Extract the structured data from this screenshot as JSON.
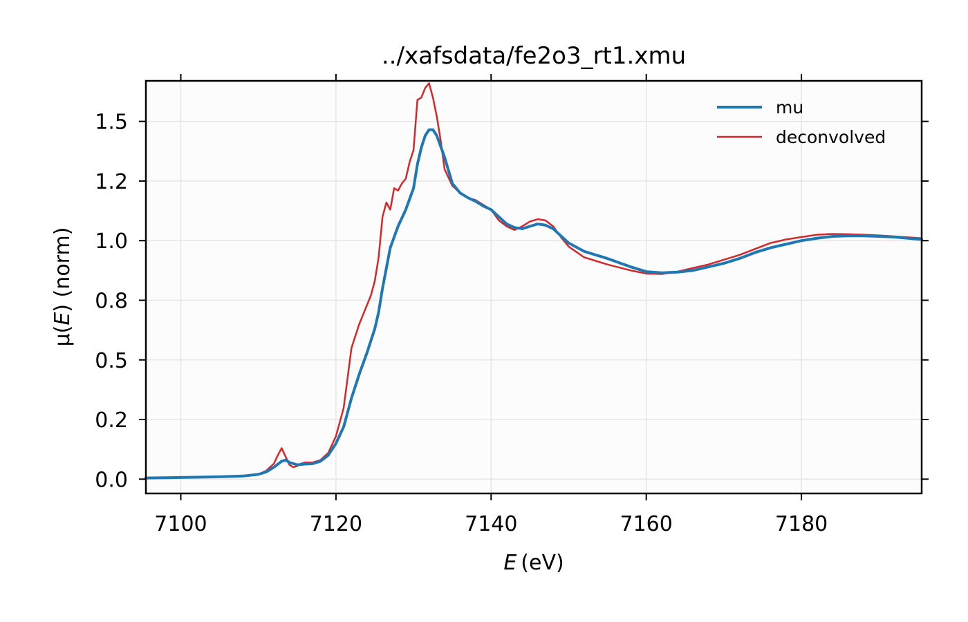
{
  "chart_data": {
    "type": "line",
    "title": "../xafsdata/fe2o3_rt1.xmu",
    "xlabel_italic": "E",
    "xlabel_unit": "(eV)",
    "ylabel_prefix": "μ(",
    "ylabel_italic": "E",
    "ylabel_suffix": ") (norm)",
    "xlim": [
      7095.5,
      7195.5
    ],
    "ylim": [
      -0.06,
      1.67
    ],
    "xticks": [
      7100,
      7120,
      7140,
      7160,
      7180
    ],
    "xtick_labels": [
      "7100",
      "7120",
      "7140",
      "7160",
      "7180"
    ],
    "yticks": [
      0.0,
      0.25,
      0.5,
      0.75,
      1.0,
      1.25,
      1.5
    ],
    "ytick_labels": [
      "0.0",
      "0.2",
      "0.5",
      "0.8",
      "1.0",
      "1.2",
      "1.5"
    ],
    "grid": true,
    "legend_position": "top-right",
    "series": [
      {
        "name": "mu",
        "color": "#1f77b4",
        "x": [
          7095.5,
          7100,
          7105,
          7108,
          7110,
          7111,
          7112,
          7113,
          7113.5,
          7114,
          7115,
          7116,
          7117,
          7118,
          7119,
          7120,
          7121,
          7122,
          7123,
          7124,
          7125,
          7125.5,
          7126,
          7127,
          7128,
          7129,
          7130,
          7130.5,
          7131,
          7131.5,
          7132,
          7132.5,
          7133,
          7134,
          7135,
          7136,
          7137,
          7138,
          7139,
          7140,
          7141,
          7142,
          7143,
          7144,
          7145,
          7146,
          7147,
          7148,
          7149,
          7150,
          7152,
          7155,
          7158,
          7160,
          7162,
          7164,
          7166,
          7168,
          7170,
          7172,
          7174,
          7176,
          7178,
          7180,
          7182,
          7184,
          7186,
          7188,
          7190,
          7192,
          7195.5
        ],
        "y": [
          0.005,
          0.007,
          0.01,
          0.013,
          0.02,
          0.03,
          0.05,
          0.075,
          0.08,
          0.07,
          0.06,
          0.063,
          0.065,
          0.075,
          0.1,
          0.15,
          0.22,
          0.34,
          0.44,
          0.53,
          0.63,
          0.7,
          0.8,
          0.97,
          1.06,
          1.13,
          1.22,
          1.32,
          1.39,
          1.44,
          1.465,
          1.465,
          1.44,
          1.35,
          1.24,
          1.2,
          1.18,
          1.165,
          1.145,
          1.13,
          1.1,
          1.07,
          1.055,
          1.05,
          1.06,
          1.07,
          1.065,
          1.05,
          1.02,
          0.99,
          0.955,
          0.925,
          0.89,
          0.87,
          0.865,
          0.868,
          0.875,
          0.89,
          0.905,
          0.925,
          0.95,
          0.97,
          0.985,
          1.0,
          1.01,
          1.018,
          1.02,
          1.02,
          1.018,
          1.015,
          1.005
        ]
      },
      {
        "name": "deconvolved",
        "color": "#d62728",
        "x": [
          7095.5,
          7100,
          7105,
          7108,
          7110,
          7111,
          7112,
          7112.5,
          7113,
          7113.5,
          7114,
          7114.5,
          7115,
          7115.5,
          7116,
          7117,
          7118,
          7119,
          7120,
          7121,
          7122,
          7122.5,
          7123,
          7123.5,
          7124,
          7124.5,
          7125,
          7125.5,
          7126,
          7126.5,
          7127,
          7127.5,
          7128,
          7128.5,
          7129,
          7129.5,
          7130,
          7130.5,
          7131,
          7131.5,
          7132,
          7132.5,
          7133,
          7133.5,
          7134,
          7135,
          7136,
          7137,
          7138,
          7139,
          7140,
          7141,
          7142,
          7143,
          7144,
          7145,
          7146,
          7147,
          7148,
          7149,
          7150,
          7152,
          7155,
          7158,
          7160,
          7162,
          7164,
          7166,
          7168,
          7170,
          7172,
          7174,
          7176,
          7178,
          7180,
          7182,
          7184,
          7186,
          7188,
          7190,
          7192,
          7195.5
        ],
        "y": [
          0.005,
          0.007,
          0.01,
          0.013,
          0.02,
          0.035,
          0.065,
          0.1,
          0.13,
          0.095,
          0.06,
          0.05,
          0.055,
          0.065,
          0.07,
          0.07,
          0.08,
          0.11,
          0.18,
          0.3,
          0.55,
          0.6,
          0.65,
          0.69,
          0.73,
          0.77,
          0.83,
          0.93,
          1.1,
          1.16,
          1.13,
          1.22,
          1.21,
          1.24,
          1.26,
          1.33,
          1.38,
          1.59,
          1.6,
          1.64,
          1.66,
          1.6,
          1.52,
          1.42,
          1.3,
          1.23,
          1.2,
          1.18,
          1.17,
          1.15,
          1.13,
          1.085,
          1.06,
          1.045,
          1.06,
          1.08,
          1.09,
          1.085,
          1.06,
          1.015,
          0.975,
          0.93,
          0.9,
          0.875,
          0.862,
          0.86,
          0.87,
          0.885,
          0.9,
          0.92,
          0.94,
          0.965,
          0.99,
          1.005,
          1.015,
          1.025,
          1.028,
          1.027,
          1.025,
          1.022,
          1.018,
          1.01
        ]
      }
    ]
  }
}
